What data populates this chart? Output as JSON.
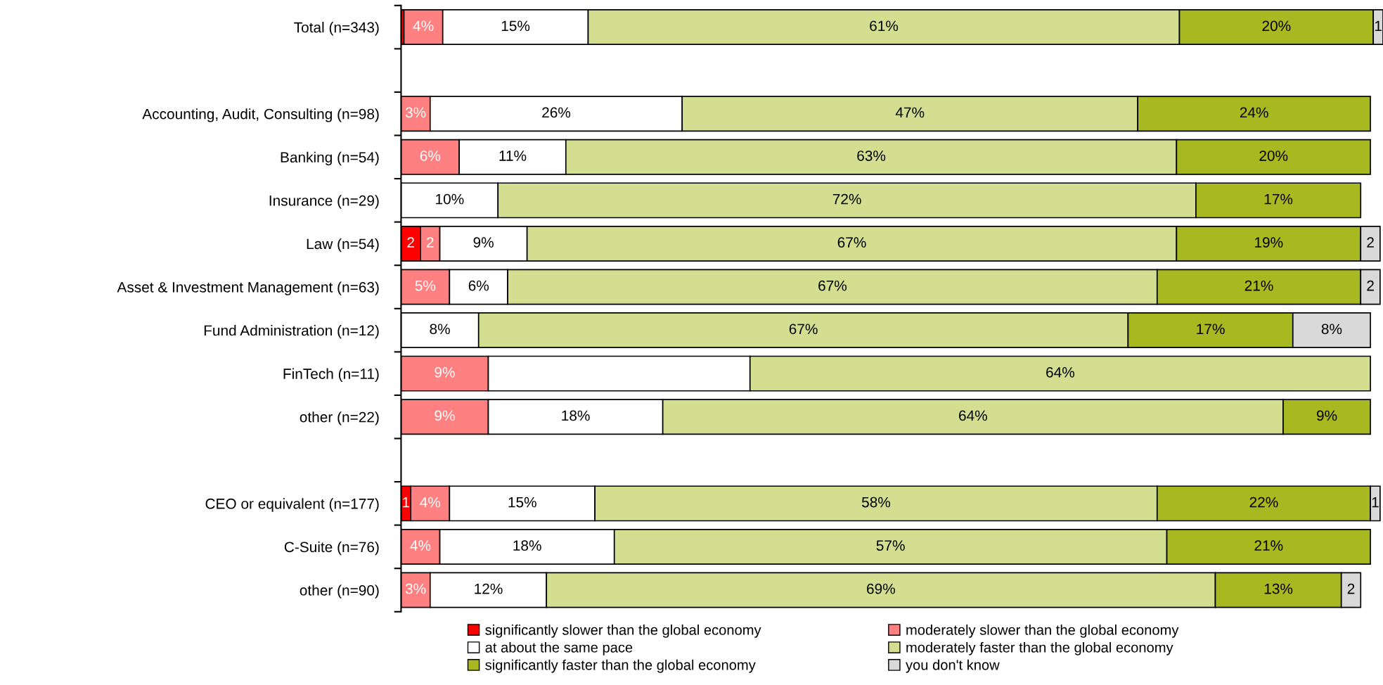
{
  "chart_data": {
    "type": "bar",
    "orientation": "horizontal",
    "stacked": true,
    "categories": [
      "Total (n=343)",
      null,
      "Accounting, Audit, Consulting (n=98)",
      "Banking (n=54)",
      "Insurance (n=29)",
      "Law (n=54)",
      "Asset & Investment Management (n=63)",
      "Fund Administration (n=12)",
      "FinTech (n=11)",
      "other (n=22)",
      null,
      "CEO or equivalent (n=177)",
      "C-Suite (n=76)",
      "other (n=90)"
    ],
    "series": [
      {
        "name": "significantly slower than the global economy",
        "color": "#ff0000",
        "values": [
          0.3,
          null,
          null,
          null,
          null,
          2,
          null,
          null,
          null,
          null,
          null,
          1,
          null,
          null
        ],
        "value_labels": [
          null,
          null,
          null,
          null,
          null,
          "2",
          null,
          null,
          null,
          null,
          null,
          "1",
          null,
          null
        ]
      },
      {
        "name": "moderately slower than the global economy",
        "color": "#ff8080",
        "values": [
          4,
          null,
          3,
          6,
          null,
          2,
          5,
          null,
          9,
          9,
          null,
          4,
          4,
          3
        ],
        "value_labels": [
          "4%",
          null,
          "3%",
          "6%",
          null,
          "2",
          "5%",
          null,
          "9%",
          "9%",
          null,
          "4%",
          "4%",
          "3%"
        ]
      },
      {
        "name": "at about the same pace",
        "color": "#ffffff",
        "values": [
          15,
          null,
          26,
          11,
          10,
          9,
          6,
          8,
          27,
          18,
          null,
          15,
          18,
          12
        ],
        "value_labels": [
          "15%",
          null,
          "26%",
          "11%",
          "10%",
          "9%",
          "6%",
          "8%",
          null,
          "18%",
          null,
          "15%",
          "18%",
          "12%"
        ]
      },
      {
        "name": "moderately faster than the global economy",
        "color": "#d4de90",
        "values": [
          61,
          null,
          47,
          63,
          72,
          67,
          67,
          67,
          64,
          64,
          null,
          58,
          57,
          69
        ],
        "value_labels": [
          "61%",
          null,
          "47%",
          "63%",
          "72%",
          "67%",
          "67%",
          "67%",
          "64%",
          "64%",
          null,
          "58%",
          "57%",
          "69%"
        ]
      },
      {
        "name": "significantly faster than the global economy",
        "color": "#a8b820",
        "values": [
          20,
          null,
          24,
          20,
          17,
          19,
          21,
          17,
          null,
          9,
          null,
          22,
          21,
          13
        ],
        "value_labels": [
          "20%",
          null,
          "24%",
          "20%",
          "17%",
          "19%",
          "21%",
          "17%",
          null,
          "9%",
          null,
          "22%",
          "21%",
          "13%"
        ]
      },
      {
        "name": "you don't know",
        "color": "#d9d9d9",
        "values": [
          1,
          null,
          null,
          null,
          null,
          2,
          2,
          8,
          null,
          null,
          null,
          1,
          null,
          2
        ],
        "value_labels": [
          "1",
          null,
          null,
          null,
          null,
          "2",
          "2",
          "8%",
          null,
          null,
          null,
          "1",
          null,
          "2"
        ]
      }
    ],
    "legend": "bottom"
  }
}
